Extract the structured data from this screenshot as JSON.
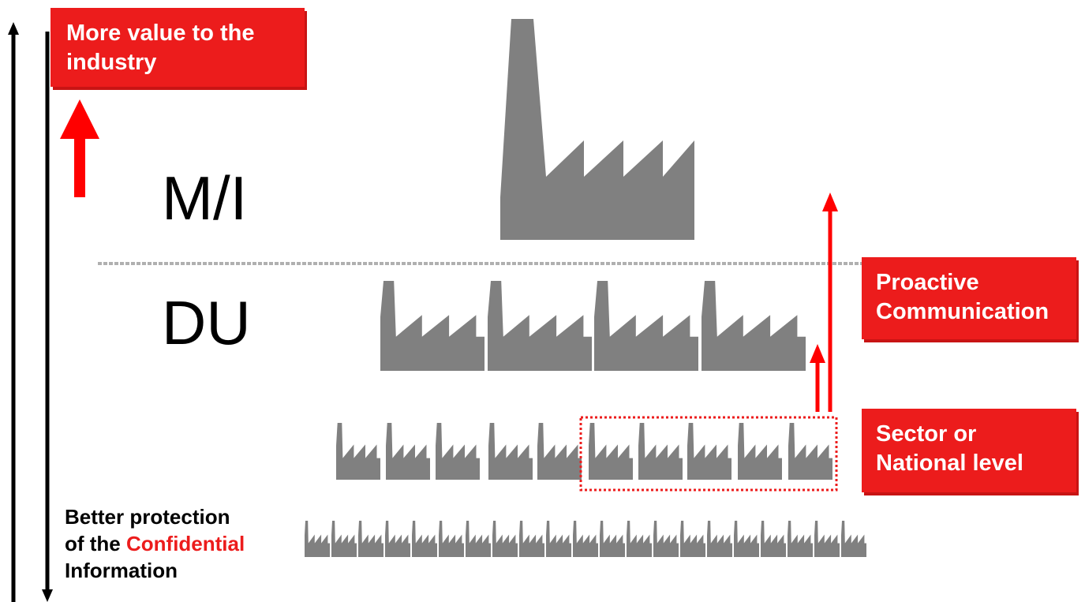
{
  "callouts": {
    "top": {
      "line1": "More value to the",
      "line2": "industry"
    },
    "proactive": {
      "line1": "Proactive",
      "line2": "Communication"
    },
    "sector": {
      "line1": "Sector or",
      "line2": "National level"
    }
  },
  "levels": {
    "mi": "M/I",
    "du": "DU"
  },
  "bottom_note": {
    "line1": "Better protection",
    "line2_prefix": "of the ",
    "line2_highlight": "Confidential",
    "line3": "Information"
  },
  "colors": {
    "accent_red": "#ec1c1c",
    "factory_gray": "#808080",
    "divider_gray": "#b0b0b0"
  },
  "icons": {
    "factory": "factory-icon"
  }
}
